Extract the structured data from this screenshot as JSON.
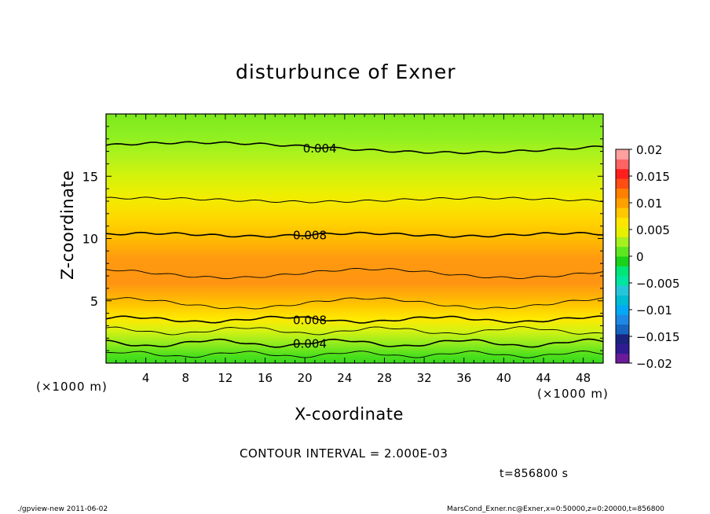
{
  "chart_data": {
    "type": "heatmap",
    "title": "disturbunce of Exner",
    "xlabel": "X-coordinate",
    "ylabel": "Z-coordinate",
    "x_unit": "(×1000 m)",
    "y_unit": "(×1000 m)",
    "xlim": [
      0,
      50
    ],
    "ylim": [
      0,
      20
    ],
    "x_ticks": [
      4,
      8,
      12,
      16,
      20,
      24,
      28,
      32,
      36,
      40,
      44,
      48
    ],
    "y_ticks": [
      5,
      10,
      15
    ],
    "colorbar": {
      "ticks": [
        "0.02",
        "0.015",
        "0.01",
        "0.005",
        "0",
        "−0.005",
        "−0.01",
        "−0.015",
        "−0.02"
      ],
      "range": [
        -0.02,
        0.02
      ],
      "colors": [
        "#6a1b9a",
        "#311b92",
        "#1a237e",
        "#1565c0",
        "#1e88e5",
        "#03a9f4",
        "#00bcd4",
        "#26c6da",
        "#00e5a0",
        "#00e676",
        "#19d219",
        "#5ee61e",
        "#a6f01e",
        "#e6f000",
        "#ffe600",
        "#ffc800",
        "#ffa000",
        "#ff7f00",
        "#ff4d14",
        "#ff1e1e",
        "#ff6464",
        "#ffa0a0"
      ]
    },
    "contour_interval": "CONTOUR INTERVAL = 2.000E-03",
    "contour_labels": [
      {
        "text": "0.004",
        "x": 21.5,
        "z": 17.3
      },
      {
        "text": "0.008",
        "x": 20.5,
        "z": 10.3
      },
      {
        "text": "0.008",
        "x": 20.5,
        "z": 3.5
      },
      {
        "text": "0.004",
        "x": 20.5,
        "z": 1.6
      }
    ],
    "time_label": "t=856800 s"
  },
  "footer": {
    "left": "./gpview-new   2011-06-02",
    "right": "MarsCond_Exner.nc@Exner,x=0:50000,z=0:20000,t=856800"
  }
}
